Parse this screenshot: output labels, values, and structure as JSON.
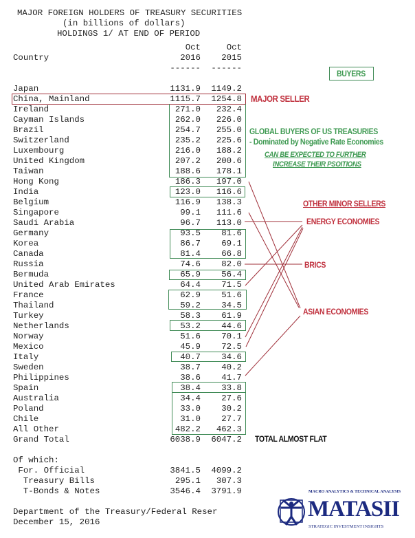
{
  "title": [
    "MAJOR FOREIGN HOLDERS OF TREASURY SECURITIES",
    "(in billions of dollars)",
    "HOLDINGS 1/ AT END OF PERIOD"
  ],
  "header": {
    "country": "Country",
    "col1": [
      "Oct",
      "2016"
    ],
    "col2": [
      "Oct",
      "2015"
    ],
    "dash": "------"
  },
  "rows": [
    [
      "Japan",
      "1131.9",
      "1149.2"
    ],
    [
      "China, Mainland",
      "1115.7",
      "1254.8"
    ],
    [
      "Ireland",
      "271.0",
      "232.4"
    ],
    [
      "Cayman Islands",
      "262.0",
      "226.0"
    ],
    [
      "Brazil",
      "254.7",
      "255.0"
    ],
    [
      "Switzerland",
      "235.2",
      "225.6"
    ],
    [
      "Luxembourg",
      "216.0",
      "188.2"
    ],
    [
      "United Kingdom",
      "207.2",
      "200.6"
    ],
    [
      "Taiwan",
      "188.6",
      "178.1"
    ],
    [
      "Hong Kong",
      "186.3",
      "197.0"
    ],
    [
      "India",
      "123.0",
      "116.6"
    ],
    [
      "Belgium",
      "116.9",
      "138.3"
    ],
    [
      "Singapore",
      "99.1",
      "111.6"
    ],
    [
      "Saudi Arabia",
      "96.7",
      "113.0"
    ],
    [
      "Germany",
      "93.5",
      "81.6"
    ],
    [
      "Korea",
      "86.7",
      "69.1"
    ],
    [
      "Canada",
      "81.4",
      "66.8"
    ],
    [
      "Russia",
      "74.6",
      "82.0"
    ],
    [
      "Bermuda",
      "65.9",
      "56.4"
    ],
    [
      "United Arab Emirates",
      "64.4",
      "71.5"
    ],
    [
      "France",
      "62.9",
      "51.6"
    ],
    [
      "Thailand",
      "59.2",
      "34.5"
    ],
    [
      "Turkey",
      "58.3",
      "61.9"
    ],
    [
      "Netherlands",
      "53.2",
      "44.6"
    ],
    [
      "Norway",
      "51.6",
      "70.1"
    ],
    [
      "Mexico",
      "45.9",
      "72.5"
    ],
    [
      "Italy",
      "40.7",
      "34.6"
    ],
    [
      "Sweden",
      "38.7",
      "40.2"
    ],
    [
      "Philippines",
      "38.6",
      "41.7"
    ],
    [
      "Spain",
      "38.4",
      "33.8"
    ],
    [
      "Australia",
      "34.4",
      "27.6"
    ],
    [
      "Poland",
      "33.0",
      "30.2"
    ],
    [
      "Chile",
      "31.0",
      "27.7"
    ],
    [
      "All Other",
      "482.2",
      "462.3"
    ],
    [
      "Grand Total",
      "6038.9",
      "6047.2"
    ]
  ],
  "of_which": {
    "label": "Of which:",
    "rows": [
      [
        " For. Official",
        "3841.5",
        "4099.2"
      ],
      [
        "  Treasury Bills",
        "295.1",
        "307.3"
      ],
      [
        "  T-Bonds & Notes",
        "3546.4",
        "3791.9"
      ]
    ]
  },
  "source": [
    "Department of the Treasury/Federal Reser",
    "December 15, 2016"
  ],
  "annotations": {
    "buyers": "BUYERS",
    "major_seller": "MAJOR SELLER",
    "global_buyers": "GLOBAL BUYERS OF US TREASURIES",
    "global_buyers_sub": "- Dominated by Negative Rate Economies",
    "expected_1": "CAN BE EXPECTED TO FURTHER",
    "expected_2": "INCREASE THEIR PSOITIONS",
    "other_minor": "OTHER MINOR SELLERS",
    "energy": "ENERGY ECONOMIES",
    "brics": "BRICS",
    "asian": "ASIAN ECONOMIES",
    "total_flat": "TOTAL ALMOST FLAT"
  },
  "logo": {
    "top": "MACRO ANALYTICS & TECHNICAL ANALYSIS",
    "name": "MATASII",
    "bottom": "STRATEGIC INVESTMENT INSIGHTS"
  },
  "colors": {
    "buyer_green": "#3f8a55",
    "seller_red": "#a0303a",
    "logo_blue": "#1c2a80"
  }
}
